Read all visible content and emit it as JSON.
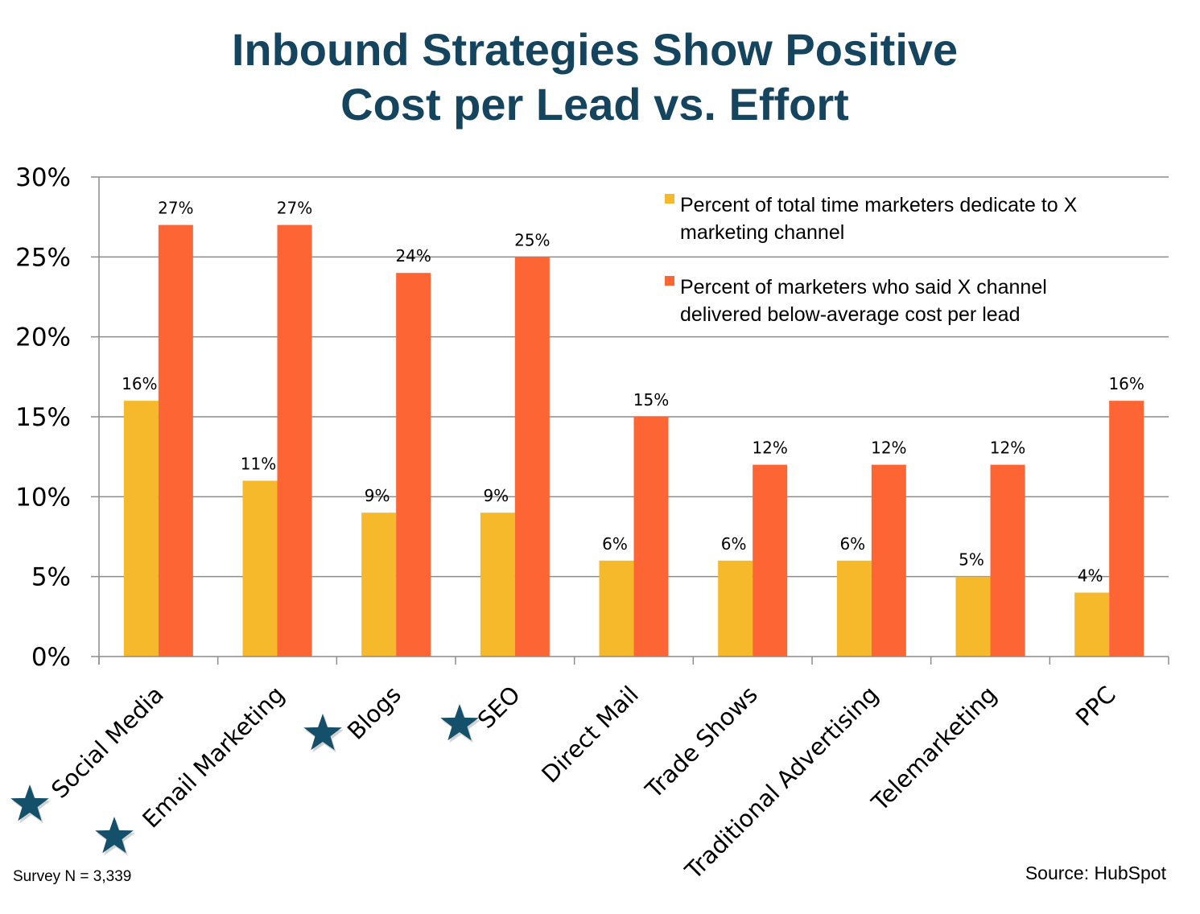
{
  "chart_data": {
    "type": "bar",
    "title": [
      "Inbound Strategies Show Positive",
      "Cost per Lead vs. Effort"
    ],
    "xlabel": "",
    "ylabel": "",
    "ylim": [
      0,
      30
    ],
    "yticks": [
      0,
      5,
      10,
      15,
      20,
      25,
      30
    ],
    "ytick_labels": [
      "0%",
      "5%",
      "10%",
      "15%",
      "20%",
      "25%",
      "30%"
    ],
    "grid": true,
    "legend_position": "top-right",
    "categories": [
      "Social Media",
      "Email Marketing",
      "Blogs",
      "SEO",
      "Direct Mail",
      "Trade Shows",
      "Traditional Advertising",
      "Telemarketing",
      "PPC"
    ],
    "starred_categories": [
      "Social Media",
      "Email Marketing",
      "Blogs",
      "SEO"
    ],
    "series": [
      {
        "name": "Percent of total time marketers dedicate to X marketing channel",
        "legend_lines": [
          "Percent of total time marketers dedicate to X",
          "marketing channel"
        ],
        "color": "#f6b92b",
        "values": [
          16,
          11,
          9,
          9,
          6,
          6,
          6,
          5,
          4
        ],
        "labels": [
          "16%",
          "11%",
          "9%",
          "9%",
          "6%",
          "6%",
          "6%",
          "5%",
          "4%"
        ]
      },
      {
        "name": "Percent of marketers who said X channel delivered below-average cost per lead",
        "legend_lines": [
          "Percent of marketers who said X channel",
          "delivered below-average cost per lead"
        ],
        "color": "#fd6535",
        "values": [
          27,
          27,
          24,
          25,
          15,
          12,
          12,
          12,
          16
        ],
        "labels": [
          "27%",
          "27%",
          "24%",
          "25%",
          "15%",
          "12%",
          "12%",
          "12%",
          "16%"
        ]
      }
    ]
  },
  "colors": {
    "title": "#15445e",
    "star": "#15506a",
    "grid": "#8c8c8c"
  },
  "icons": {
    "star": "star-icon"
  },
  "footnote": "Survey N = 3,339",
  "source": "Source: HubSpot"
}
